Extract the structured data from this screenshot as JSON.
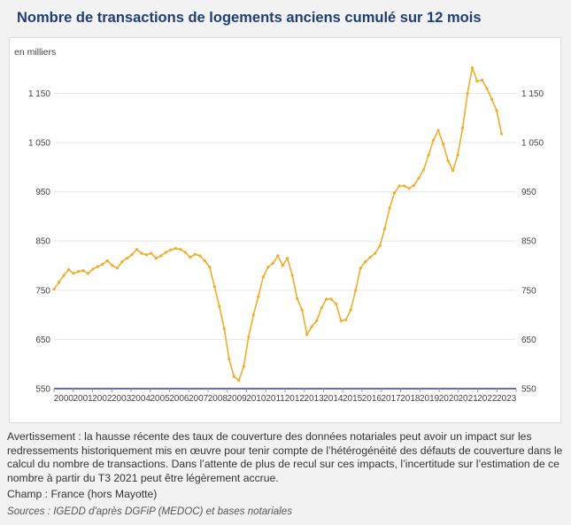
{
  "title": "Nombre de transactions de logements anciens cumulé sur 12 mois",
  "note": "Avertissement : la hausse récente des taux de couverture des données notariales peut avoir un impact sur les redressements historiquement mis en œuvre pour tenir compte de l’hétérogénéité des défauts de couverture dans le calcul du nombre de transactions. Dans l’attente de plus de recul sur ces impacts, l’incertitude sur l’estimation de ce nombre à partir du T3 2021 peut être légèrement accrue.",
  "champ": "Champ : France (hors Mayotte)",
  "sources": "Sources : IGEDD d'après DGFiP (MEDOC) et bases notariales",
  "colors": {
    "line": "#f0ad2c",
    "axis": "#3c3c8c",
    "grid": "#e6e6e6"
  },
  "chart_data": {
    "type": "line",
    "title": "Nombre de transactions de logements anciens cumulé sur 12 mois",
    "ylabel": "en milliers",
    "xlabel": "",
    "ylim": [
      550,
      1230
    ],
    "yticks": [
      550,
      650,
      750,
      850,
      950,
      1050,
      1150
    ],
    "ytick_labels": [
      "550",
      "650",
      "750",
      "850",
      "950",
      "1 050",
      "1 150"
    ],
    "xlim": [
      2000.0,
      2023.75
    ],
    "xtick_labels": [
      "2000",
      "2001",
      "2002",
      "2003",
      "2004",
      "2005",
      "2006",
      "2007",
      "2008",
      "2009",
      "2010",
      "2011",
      "2012",
      "2013",
      "2014",
      "2015",
      "2016",
      "2017",
      "2018",
      "2019",
      "2020",
      "2021",
      "2022",
      "2023"
    ],
    "grid": "horizontal",
    "series": [
      {
        "name": "",
        "x": [
          2000.0,
          2000.25,
          2000.5,
          2000.75,
          2001.0,
          2001.25,
          2001.5,
          2001.75,
          2002.0,
          2002.25,
          2002.5,
          2002.75,
          2003.0,
          2003.25,
          2003.5,
          2003.75,
          2004.0,
          2004.25,
          2004.5,
          2004.75,
          2005.0,
          2005.25,
          2005.5,
          2005.75,
          2006.0,
          2006.25,
          2006.5,
          2006.75,
          2007.0,
          2007.25,
          2007.5,
          2007.75,
          2008.0,
          2008.25,
          2008.5,
          2008.75,
          2009.0,
          2009.25,
          2009.5,
          2009.75,
          2010.0,
          2010.25,
          2010.5,
          2010.75,
          2011.0,
          2011.25,
          2011.5,
          2011.75,
          2012.0,
          2012.25,
          2012.5,
          2012.75,
          2013.0,
          2013.25,
          2013.5,
          2013.75,
          2014.0,
          2014.25,
          2014.5,
          2014.75,
          2015.0,
          2015.25,
          2015.5,
          2015.75,
          2016.0,
          2016.25,
          2016.5,
          2016.75,
          2017.0,
          2017.25,
          2017.5,
          2017.75,
          2018.0,
          2018.25,
          2018.5,
          2018.75,
          2019.0,
          2019.25,
          2019.5,
          2019.75,
          2020.0,
          2020.25,
          2020.5,
          2020.75,
          2021.0,
          2021.25,
          2021.5,
          2021.75,
          2022.0,
          2022.25,
          2022.5,
          2022.75,
          2023.0
        ],
        "values": [
          752,
          766,
          780,
          792,
          784,
          788,
          790,
          784,
          793,
          798,
          803,
          810,
          800,
          795,
          808,
          815,
          822,
          833,
          825,
          822,
          825,
          815,
          820,
          827,
          832,
          835,
          833,
          827,
          817,
          823,
          820,
          810,
          797,
          757,
          717,
          672,
          610,
          575,
          567,
          595,
          655,
          700,
          737,
          777,
          797,
          805,
          820,
          800,
          815,
          780,
          733,
          710,
          660,
          676,
          688,
          714,
          732,
          732,
          722,
          688,
          690,
          710,
          750,
          795,
          808,
          817,
          825,
          840,
          875,
          917,
          948,
          962,
          962,
          957,
          963,
          978,
          995,
          1025,
          1055,
          1075,
          1047,
          1013,
          993,
          1025,
          1080,
          1150,
          1202,
          1175,
          1177,
          1160,
          1138,
          1115,
          1068
        ]
      }
    ]
  }
}
